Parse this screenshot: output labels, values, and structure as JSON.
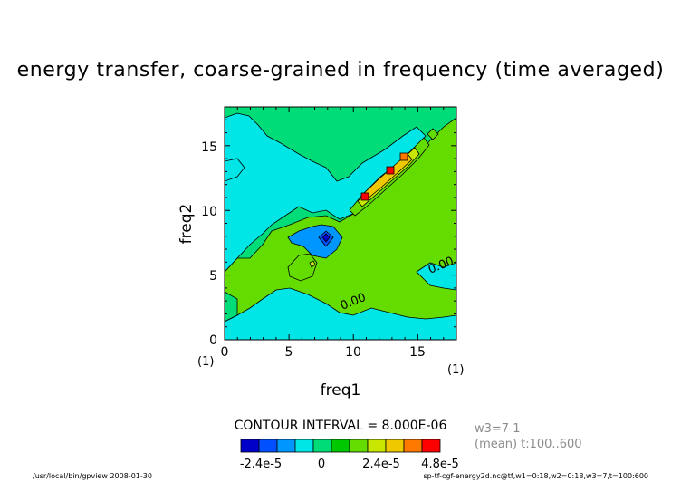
{
  "chart_data": {
    "type": "heatmap",
    "title": "energy transfer, coarse-grained in frequency (time averaged)",
    "xlabel": "freq1",
    "ylabel": "freq2",
    "xlim": [
      0,
      18
    ],
    "ylim": [
      0,
      18
    ],
    "x_ticks": [
      "0",
      "5",
      "10",
      "15"
    ],
    "y_ticks": [
      "0",
      "5",
      "10",
      "15"
    ],
    "x_unit": "(1)",
    "y_unit": "(1)",
    "contour_labels": [
      "0.00",
      "0.00"
    ],
    "contour_interval_text": "CONTOUR INTERVAL = 8.000E-06",
    "colorbar": {
      "colors": [
        "#0000c8",
        "#0050ff",
        "#0096ff",
        "#00e6e6",
        "#00dc78",
        "#00c800",
        "#64dc00",
        "#c8e600",
        "#f0c800",
        "#ff7800",
        "#ff0000"
      ],
      "tick_labels": [
        "-2.4e-5",
        "0",
        "2.4e-5",
        "4.8e-5"
      ]
    },
    "info_lines": [
      "w3=7 1",
      "(mean) t:100..600"
    ],
    "footer_left": "/usr/local/bin/gpview  2008-01-30",
    "footer_right": "sp-tf-cgf-energy2d.nc@tf,w1=0:18,w2=0:18,w3=7,t=100:600"
  }
}
